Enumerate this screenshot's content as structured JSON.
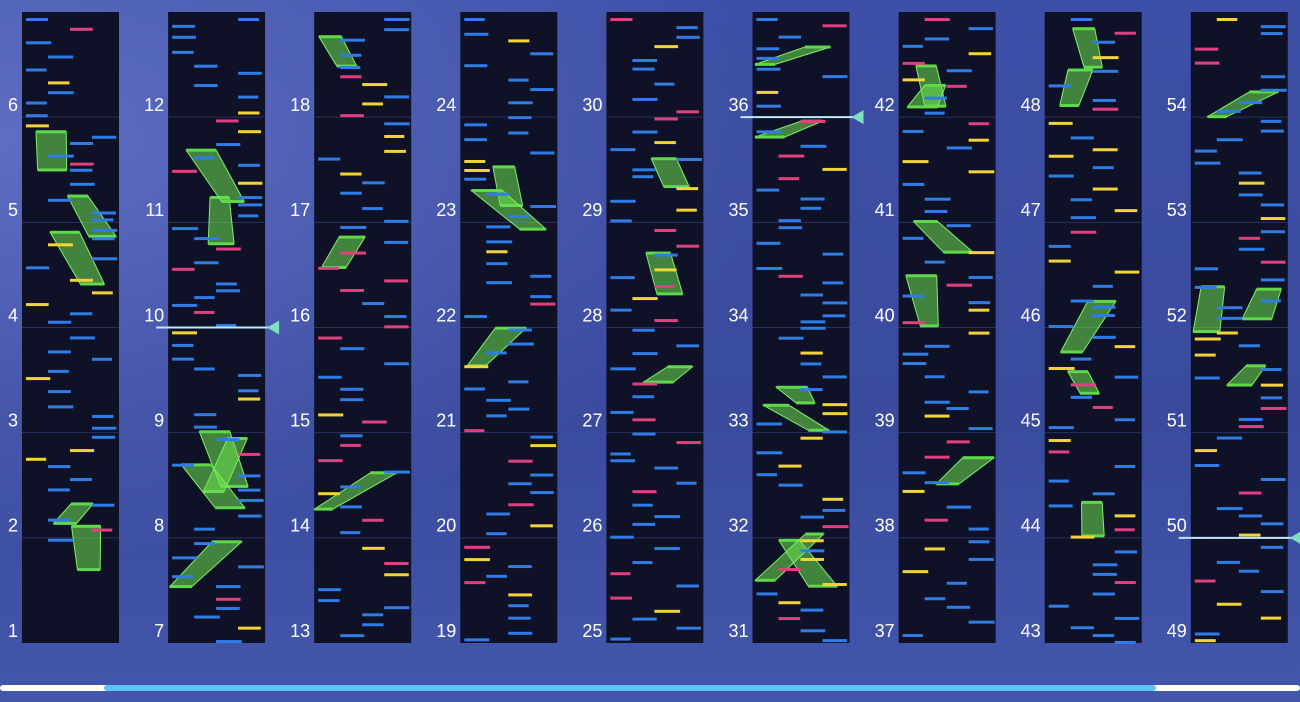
{
  "measures": [
    1,
    2,
    3,
    4,
    5,
    6,
    7,
    8,
    9,
    10,
    11,
    12,
    13,
    14,
    15,
    16,
    17,
    18,
    19,
    20,
    21,
    22,
    23,
    24,
    25,
    26,
    27,
    28,
    29,
    30,
    31,
    32,
    33,
    34,
    35,
    36,
    37,
    38,
    39,
    40,
    41,
    42,
    43,
    44,
    45,
    46,
    47,
    48,
    49,
    50,
    51,
    52,
    53,
    54
  ]
}
